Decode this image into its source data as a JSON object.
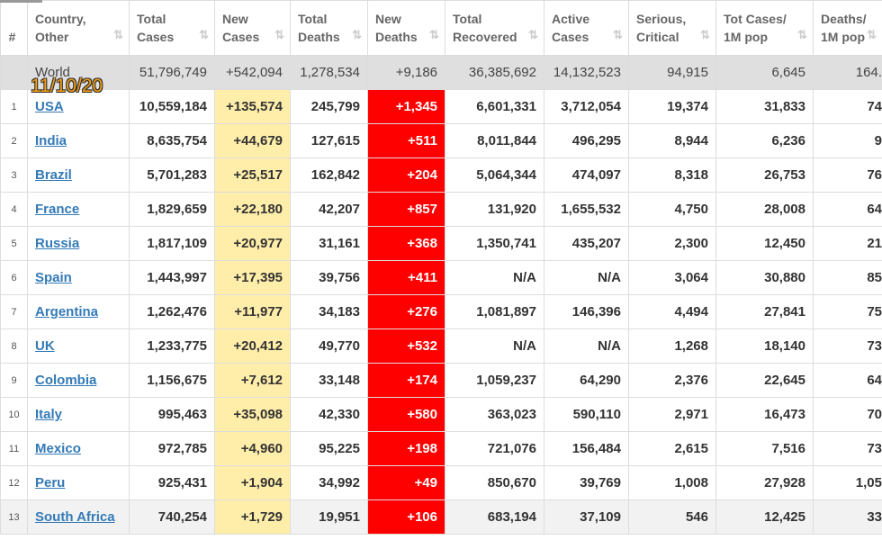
{
  "overlay_date": "11/10/20",
  "table": {
    "headers": [
      [
        "#"
      ],
      [
        "Country,",
        "Other"
      ],
      [
        "Total",
        "Cases"
      ],
      [
        "New",
        "Cases"
      ],
      [
        "Total",
        "Deaths"
      ],
      [
        "New",
        "Deaths"
      ],
      [
        "Total",
        "Recovered"
      ],
      [
        "Active",
        "Cases"
      ],
      [
        "Serious,",
        "Critical"
      ],
      [
        "Tot Cases/",
        "1M pop"
      ],
      [
        "Deaths/",
        "1M pop"
      ]
    ],
    "world": [
      "World",
      "51,796,749",
      "+542,094",
      "1,278,534",
      "+9,186",
      "36,385,692",
      "14,132,523",
      "94,915",
      "6,645",
      "164."
    ],
    "rows": [
      [
        "1",
        "USA",
        "10,559,184",
        "+135,574",
        "245,799",
        "+1,345",
        "6,601,331",
        "3,712,054",
        "19,374",
        "31,833",
        "74"
      ],
      [
        "2",
        "India",
        "8,635,754",
        "+44,679",
        "127,615",
        "+511",
        "8,011,844",
        "496,295",
        "8,944",
        "6,236",
        "9"
      ],
      [
        "3",
        "Brazil",
        "5,701,283",
        "+25,517",
        "162,842",
        "+204",
        "5,064,344",
        "474,097",
        "8,318",
        "26,753",
        "76"
      ],
      [
        "4",
        "France",
        "1,829,659",
        "+22,180",
        "42,207",
        "+857",
        "131,920",
        "1,655,532",
        "4,750",
        "28,008",
        "64"
      ],
      [
        "5",
        "Russia",
        "1,817,109",
        "+20,977",
        "31,161",
        "+368",
        "1,350,741",
        "435,207",
        "2,300",
        "12,450",
        "21"
      ],
      [
        "6",
        "Spain",
        "1,443,997",
        "+17,395",
        "39,756",
        "+411",
        "N/A",
        "N/A",
        "3,064",
        "30,880",
        "85"
      ],
      [
        "7",
        "Argentina",
        "1,262,476",
        "+11,977",
        "34,183",
        "+276",
        "1,081,897",
        "146,396",
        "4,494",
        "27,841",
        "75"
      ],
      [
        "8",
        "UK",
        "1,233,775",
        "+20,412",
        "49,770",
        "+532",
        "N/A",
        "N/A",
        "1,268",
        "18,140",
        "73"
      ],
      [
        "9",
        "Colombia",
        "1,156,675",
        "+7,612",
        "33,148",
        "+174",
        "1,059,237",
        "64,290",
        "2,376",
        "22,645",
        "64"
      ],
      [
        "10",
        "Italy",
        "995,463",
        "+35,098",
        "42,330",
        "+580",
        "363,023",
        "590,110",
        "2,971",
        "16,473",
        "70"
      ],
      [
        "11",
        "Mexico",
        "972,785",
        "+4,960",
        "95,225",
        "+198",
        "721,076",
        "156,484",
        "2,615",
        "7,516",
        "73"
      ],
      [
        "12",
        "Peru",
        "925,431",
        "+1,904",
        "34,992",
        "+49",
        "850,670",
        "39,769",
        "1,008",
        "27,928",
        "1,05"
      ],
      [
        "13",
        "South Africa",
        "740,254",
        "+1,729",
        "19,951",
        "+106",
        "683,194",
        "37,109",
        "546",
        "12,425",
        "33"
      ]
    ]
  }
}
